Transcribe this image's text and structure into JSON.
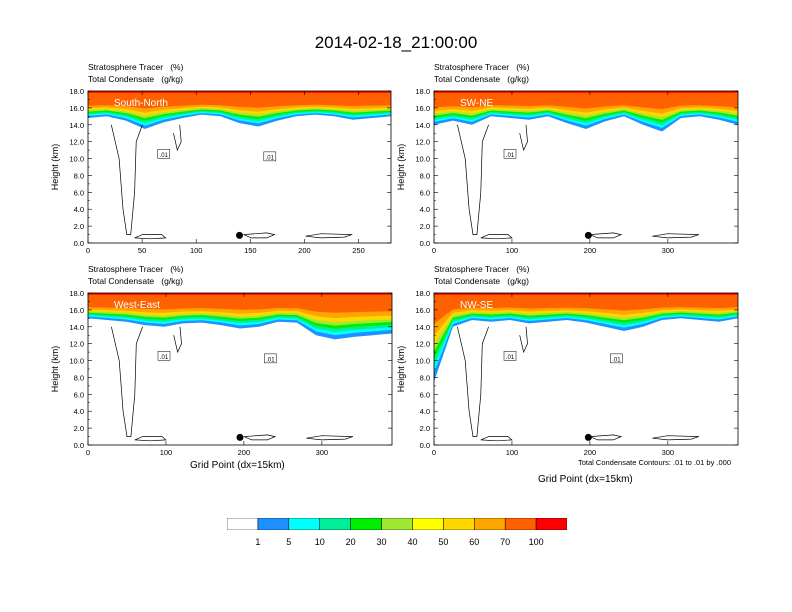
{
  "title": "2014-02-18_21:00:00",
  "panel_header": {
    "line1": "Stratosphere Tracer   (%)",
    "line2": "Total Condensate   (g/kg)"
  },
  "y_axis_label": "Height (km)",
  "x_axis_label": "Grid Point (dx=15km)",
  "footnote": "Total Condensate Contours: .01 to .01 by .000",
  "y_ticks": [
    "0.0",
    "2.0",
    "4.0",
    "6.0",
    "8.0",
    "10.0",
    "12.0",
    "14.0",
    "16.0",
    "18.0"
  ],
  "colorbar": {
    "labels": [
      "1",
      "5",
      "10",
      "20",
      "30",
      "40",
      "50",
      "60",
      "70",
      "100"
    ],
    "colors": [
      "#ffffff",
      "#1e90ff",
      "#00ffff",
      "#00ee9a",
      "#00ee00",
      "#a0e832",
      "#ffff00",
      "#ffd700",
      "#ffa500",
      "#ff6000",
      "#ff0000"
    ]
  },
  "chart_data": [
    {
      "type": "heatmap",
      "cross_section": "South-North",
      "title": "Stratosphere Tracer (%) / Total Condensate (g/kg)",
      "ylabel": "Height (km)",
      "xlabel": "",
      "xlim": [
        0,
        280
      ],
      "ylim": [
        0,
        18
      ],
      "x_ticks": [
        0,
        50,
        100,
        150,
        200,
        250
      ],
      "marker_x": 140,
      "tropopause_km": [
        14.8,
        15.0,
        14.5,
        13.5,
        14.3,
        14.8,
        15.2,
        15.0,
        14.2,
        13.8,
        14.5,
        15.0,
        15.2,
        15.0,
        14.6,
        14.8,
        15.0
      ],
      "contour_labels": [
        ".01",
        ".01"
      ]
    },
    {
      "type": "heatmap",
      "cross_section": "SW-NE",
      "title": "Stratosphere Tracer (%) / Total Condensate (g/kg)",
      "ylabel": "Height (km)",
      "xlabel": "",
      "xlim": [
        0,
        390
      ],
      "ylim": [
        0,
        18
      ],
      "x_ticks": [
        0,
        100,
        200,
        300
      ],
      "marker_x": 198,
      "tropopause_km": [
        14.0,
        14.5,
        14.0,
        15.0,
        14.8,
        14.6,
        15.0,
        14.2,
        13.5,
        14.4,
        15.0,
        14.0,
        13.2,
        14.8,
        15.0,
        14.6,
        14.0
      ],
      "contour_labels": [
        ".01"
      ]
    },
    {
      "type": "heatmap",
      "cross_section": "West-East",
      "title": "Stratosphere Tracer (%) / Total Condensate (g/kg)",
      "ylabel": "Height (km)",
      "xlabel": "Grid Point (dx=15km)",
      "xlim": [
        0,
        390
      ],
      "ylim": [
        0,
        18
      ],
      "x_ticks": [
        0,
        100,
        200,
        300
      ],
      "marker_x": 195,
      "tropopause_km": [
        15.0,
        14.8,
        14.6,
        14.2,
        14.0,
        14.4,
        14.5,
        14.2,
        13.8,
        14.0,
        14.6,
        14.5,
        13.0,
        12.5,
        12.8,
        13.0,
        13.2
      ],
      "contour_labels": [
        ".01",
        ".01"
      ]
    },
    {
      "type": "heatmap",
      "cross_section": "NW-SE",
      "title": "Stratosphere Tracer (%) / Total Condensate (g/kg)",
      "ylabel": "Height (km)",
      "xlabel": "Grid Point (dx=15km)",
      "xlim": [
        0,
        390
      ],
      "ylim": [
        0,
        18
      ],
      "x_ticks": [
        0,
        100,
        200,
        300
      ],
      "marker_x": 198,
      "tropopause_km": [
        7.5,
        14.0,
        14.8,
        14.6,
        14.8,
        14.4,
        14.6,
        14.8,
        14.5,
        14.0,
        13.5,
        14.0,
        14.8,
        15.0,
        14.8,
        14.6,
        15.0
      ],
      "contour_labels": [
        ".01",
        ".01"
      ]
    }
  ]
}
